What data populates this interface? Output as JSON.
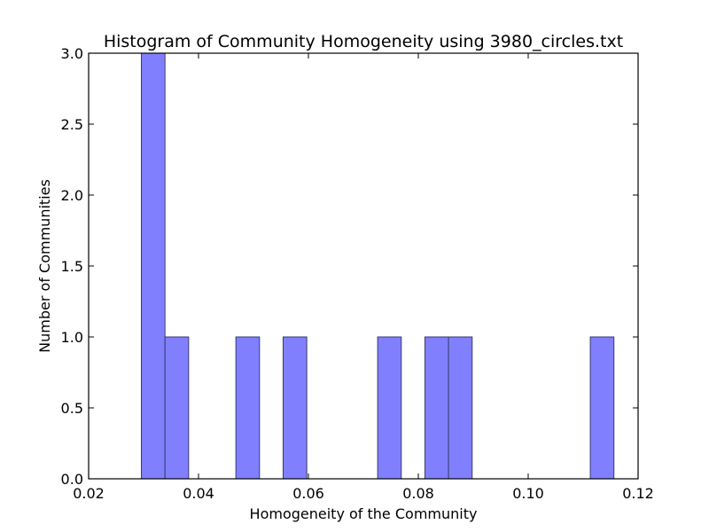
{
  "chart_data": {
    "type": "bar",
    "title": "Histogram of Community Homogeneity using 3980_circles.txt",
    "xlabel": "Homogeneity of the Community",
    "ylabel": "Number of Communities",
    "xlim": [
      0.02,
      0.12
    ],
    "ylim": [
      0.0,
      3.0
    ],
    "x_ticks": [
      "0.02",
      "0.04",
      "0.06",
      "0.08",
      "0.10",
      "0.12"
    ],
    "y_ticks": [
      "0.0",
      "0.5",
      "1.0",
      "1.5",
      "2.0",
      "2.5",
      "3.0"
    ],
    "bars": [
      {
        "x0": 0.0296,
        "x1": 0.0339,
        "count": 3
      },
      {
        "x0": 0.0339,
        "x1": 0.0382,
        "count": 1
      },
      {
        "x0": 0.0468,
        "x1": 0.0511,
        "count": 1
      },
      {
        "x0": 0.0554,
        "x1": 0.0597,
        "count": 1
      },
      {
        "x0": 0.0726,
        "x1": 0.0769,
        "count": 1
      },
      {
        "x0": 0.0812,
        "x1": 0.0855,
        "count": 1
      },
      {
        "x0": 0.0855,
        "x1": 0.0898,
        "count": 1
      },
      {
        "x0": 0.1113,
        "x1": 0.1156,
        "count": 1
      }
    ],
    "grid": false,
    "bar_color": "#8080ff",
    "bar_edge_color": "#3a3a6e"
  }
}
